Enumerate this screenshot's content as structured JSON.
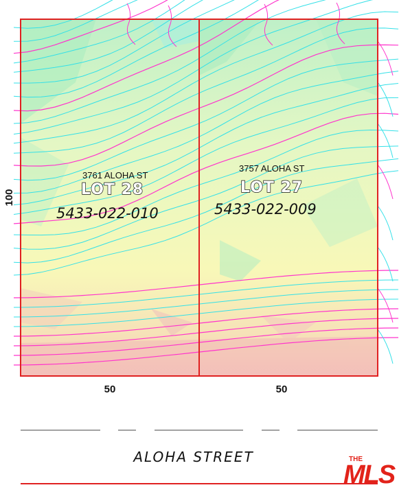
{
  "lots": [
    {
      "address": "3761 ALOHA ST",
      "lot_label": "LOT 28",
      "apn": "5433-022-010"
    },
    {
      "address": "3757 ALOHA ST",
      "lot_label": "LOT 27",
      "apn": "5433-022-009"
    }
  ],
  "dimensions": {
    "depth": "100",
    "frontage_left": "50",
    "frontage_right": "50"
  },
  "street_name": "ALOHA STREET",
  "logo": {
    "small_text": "THE",
    "text": "MLS"
  },
  "colors": {
    "boundary": "#e02020",
    "contour_major": "#ff33cc",
    "contour_minor": "#33e0e8",
    "fill_green": "#bff0c0",
    "fill_yellow": "#fbfbb8",
    "fill_pink": "#f6c6c0",
    "logo_red": "#e2231a"
  }
}
